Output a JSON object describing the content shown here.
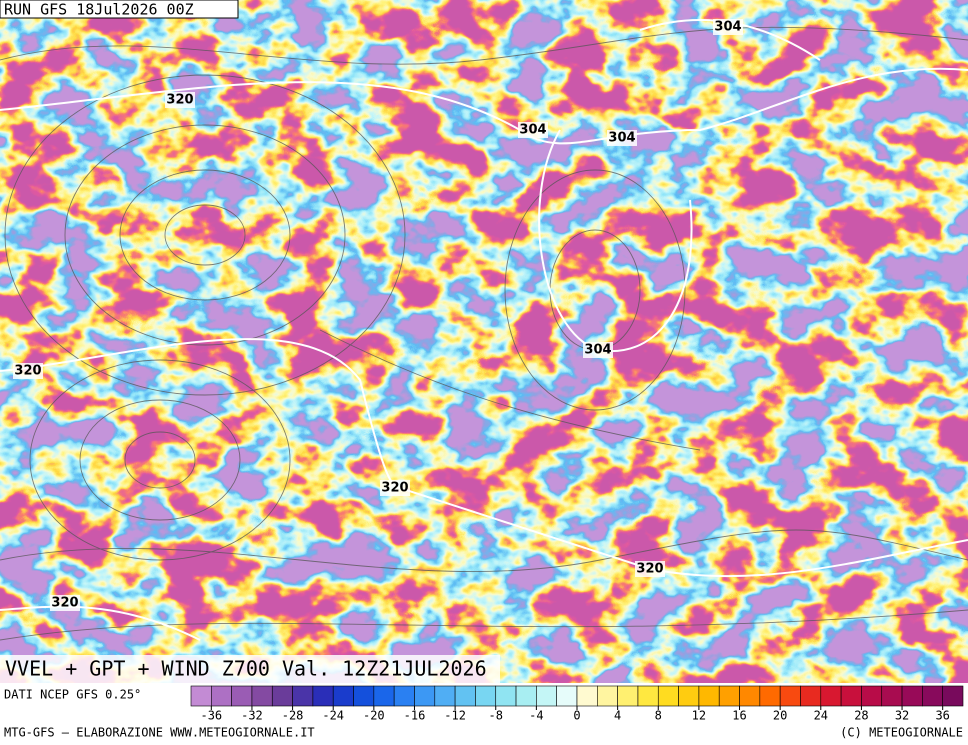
{
  "header": {
    "run": "RUN GFS 18Jul2026 00Z"
  },
  "map": {
    "contour_labels": [
      "320",
      "304",
      "304",
      "304",
      "320",
      "304",
      "320",
      "320",
      "320"
    ]
  },
  "title": "VVEL + GPT + WIND Z700 Val. 12Z21JUL2026",
  "colorbar": {
    "label": "DATI NCEP GFS 0.25°",
    "lim": [
      -38,
      38
    ],
    "ticks": [
      -36,
      -32,
      -28,
      -24,
      -20,
      -16,
      -12,
      -8,
      -4,
      0,
      4,
      8,
      12,
      16,
      20,
      24,
      28,
      32,
      36
    ],
    "colors": [
      "#c38bd4",
      "#ad70c4",
      "#9a5cb4",
      "#844aa2",
      "#6a3c9a",
      "#4a34a8",
      "#2a2eb8",
      "#1a3ccc",
      "#1450dc",
      "#1a66ea",
      "#2a80f2",
      "#3c98f4",
      "#50aef4",
      "#62c2f2",
      "#78d6f2",
      "#90e4f2",
      "#a8eef2",
      "#c4f6f6",
      "#e6fcfa",
      "#fffad0",
      "#fff5a0",
      "#fff070",
      "#ffe840",
      "#ffdc20",
      "#ffcc10",
      "#ffb800",
      "#ffa000",
      "#ff8800",
      "#ff6a00",
      "#f84a10",
      "#e82a20",
      "#d81830",
      "#c8103c",
      "#b80c48",
      "#a80c50",
      "#980a58",
      "#880a5c",
      "#780a5c"
    ]
  },
  "footer": {
    "left": "MTG-GFS — ELABORAZIONE WWW.METEOGIORNALE.IT",
    "right": "(C) METEOGIORNALE"
  }
}
